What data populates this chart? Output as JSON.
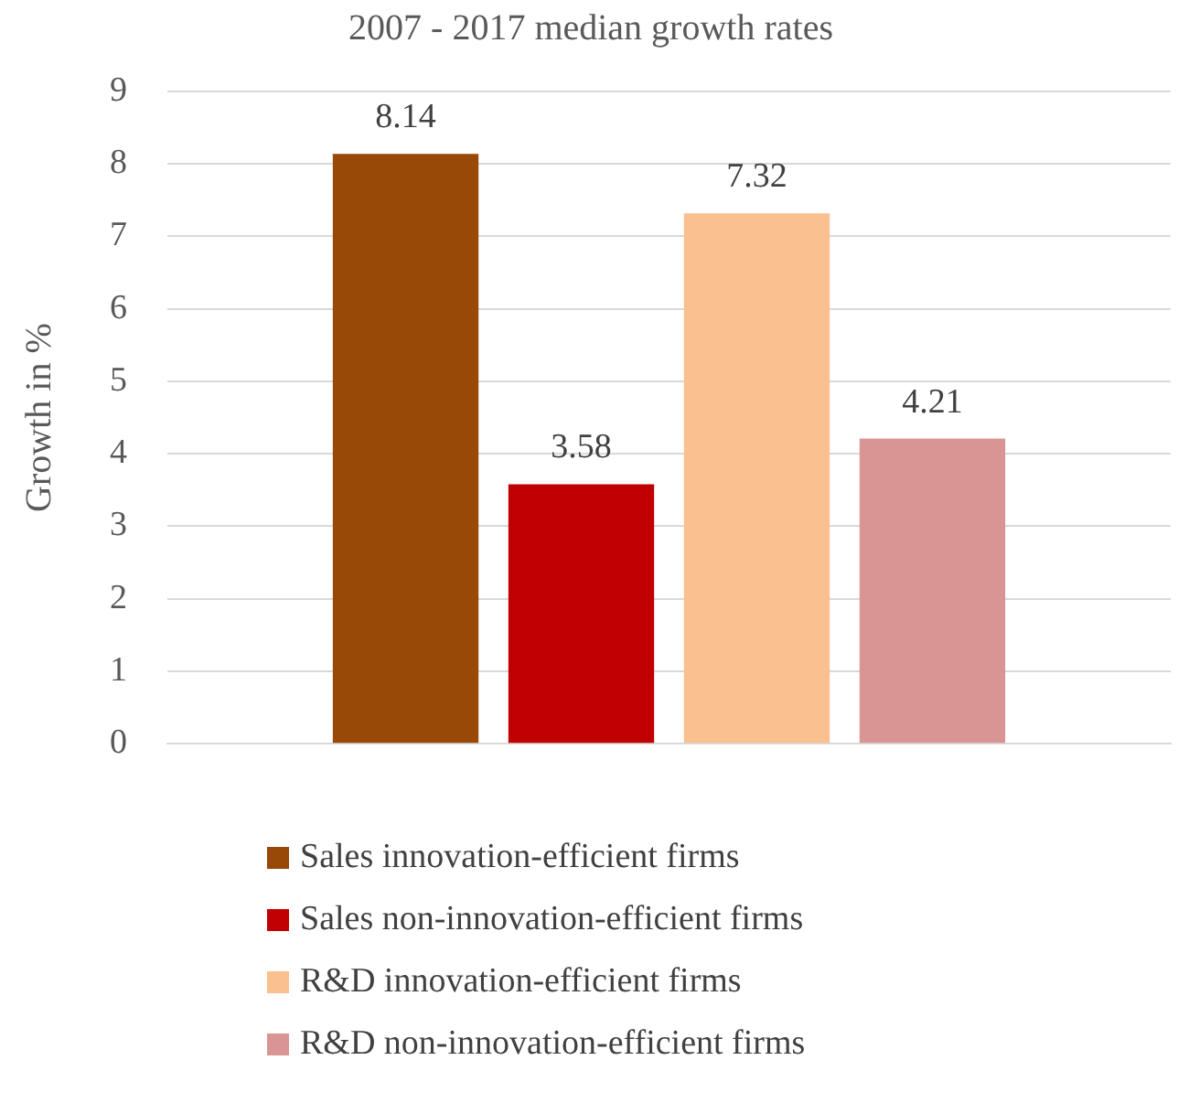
{
  "chart_data": {
    "type": "bar",
    "title": "2007 - 2017 median growth rates",
    "ylabel": "Growth in %",
    "categories": [
      null
    ],
    "series": [
      {
        "name": "Sales innovation-efficient firms",
        "color": "#984807",
        "values": [
          8.14
        ]
      },
      {
        "name": "Sales non-innovation-efficient firms",
        "color": "#c00000",
        "values": [
          3.58
        ]
      },
      {
        "name": "R&D innovation-efficient firms",
        "color": "#fac090",
        "values": [
          7.32
        ]
      },
      {
        "name": "R&D non-innovation-efficient firms",
        "color": "#d99594",
        "values": [
          4.21
        ]
      }
    ],
    "ylim": [
      0,
      9
    ],
    "yticks": [
      0,
      1,
      2,
      3,
      4,
      5,
      6,
      7,
      8,
      9
    ],
    "grid": "y",
    "legend": "bottom",
    "data_labels": true
  }
}
